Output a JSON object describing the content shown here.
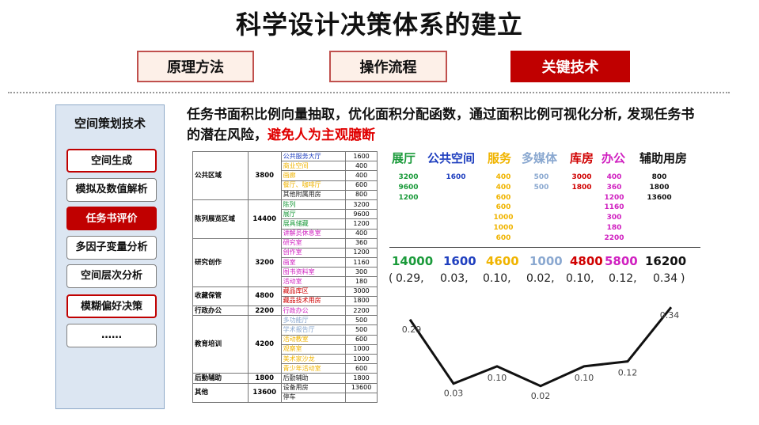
{
  "title": "科学设计决策体系的建立",
  "tabs": [
    {
      "label": "原理方法",
      "style": "outline"
    },
    {
      "label": "操作流程",
      "style": "outline"
    },
    {
      "label": "关键技术",
      "style": "solid"
    }
  ],
  "sidebar": {
    "title": "空间策划技术",
    "items": [
      {
        "label": "空间生成",
        "style": "red"
      },
      {
        "label": "模拟及数值解析",
        "style": "plain"
      },
      {
        "label": "任务书评价",
        "style": "solid"
      },
      {
        "label": "多因子变量分析",
        "style": "plain"
      },
      {
        "label": "空间层次分析",
        "style": "plain"
      },
      {
        "label": "模糊偏好决策",
        "style": "red"
      },
      {
        "label": "……",
        "style": "plain"
      }
    ]
  },
  "description": {
    "main": "任务书面积比例向量抽取，优化面积分配函数，通过面积比例可视化分析, 发现任务书的潜在风险，",
    "highlight": "避免人为主观臆断"
  },
  "area_table": {
    "groups": [
      {
        "name": "公共区域",
        "total": "3800",
        "rows": [
          {
            "item": "公共服务大厅",
            "value": "1600",
            "color": "#1f3fbf"
          },
          {
            "item": "商业空间",
            "value": "400",
            "color": "#f0b400"
          },
          {
            "item": "画廊",
            "value": "400",
            "color": "#f0b400"
          },
          {
            "item": "餐厅、咖啡厅",
            "value": "600",
            "color": "#f0b400"
          },
          {
            "item": "其他附属用房",
            "value": "800",
            "color": "#222222"
          }
        ]
      },
      {
        "name": "陈列展览区域",
        "total": "14400",
        "rows": [
          {
            "item": "陈列",
            "value": "3200",
            "color": "#1a9a3a"
          },
          {
            "item": "展厅",
            "value": "9600",
            "color": "#1a9a3a"
          },
          {
            "item": "展具储藏",
            "value": "1200",
            "color": "#1a9a3a"
          },
          {
            "item": "讲解员休息室",
            "value": "400",
            "color": "#d020c0"
          }
        ]
      },
      {
        "name": "研究创作",
        "total": "3200",
        "rows": [
          {
            "item": "研究室",
            "value": "360",
            "color": "#d020c0"
          },
          {
            "item": "创作室",
            "value": "1200",
            "color": "#d020c0"
          },
          {
            "item": "画室",
            "value": "1160",
            "color": "#d020c0"
          },
          {
            "item": "图书资料室",
            "value": "300",
            "color": "#d020c0"
          },
          {
            "item": "活动室",
            "value": "180",
            "color": "#d020c0"
          }
        ]
      },
      {
        "name": "收藏保管",
        "total": "4800",
        "rows": [
          {
            "item": "藏品库区",
            "value": "3000",
            "color": "#d00000"
          },
          {
            "item": "藏品技术用房",
            "value": "1800",
            "color": "#d00000"
          }
        ]
      },
      {
        "name": "行政办公",
        "total": "2200",
        "rows": [
          {
            "item": "行政办公",
            "value": "2200",
            "color": "#d020c0"
          }
        ]
      },
      {
        "name": "教育培训",
        "total": "4200",
        "rows": [
          {
            "item": "多功能厅",
            "value": "500",
            "color": "#8aa8d0"
          },
          {
            "item": "学术报告厅",
            "value": "500",
            "color": "#8aa8d0"
          },
          {
            "item": "活动教室",
            "value": "600",
            "color": "#f0b400"
          },
          {
            "item": "观察室",
            "value": "1000",
            "color": "#f0b400"
          },
          {
            "item": "美术家沙龙",
            "value": "1000",
            "color": "#f0b400"
          },
          {
            "item": "青少年活动室",
            "value": "600",
            "color": "#f0b400"
          }
        ]
      },
      {
        "name": "后勤辅助",
        "total": "1800",
        "rows": [
          {
            "item": "后勤辅助",
            "value": "1800",
            "color": "#222222"
          }
        ]
      },
      {
        "name": "其他",
        "total": "13600",
        "rows": [
          {
            "item": "设备用房",
            "value": "13600",
            "color": "#222222"
          },
          {
            "item": "停车",
            "value": "",
            "color": "#222222"
          }
        ]
      }
    ]
  },
  "categories": [
    {
      "name": "展厅",
      "color": "#1a9a3a",
      "values": [
        "3200",
        "9600",
        "1200"
      ],
      "total": "14000",
      "ratio": "0.29,"
    },
    {
      "name": "公共空间",
      "color": "#1f3fbf",
      "values": [
        "1600"
      ],
      "total": "1600",
      "ratio": "0.03,"
    },
    {
      "name": "服务",
      "color": "#f0b400",
      "values": [
        "400",
        "400",
        "600",
        "600",
        "1000",
        "1000",
        "600"
      ],
      "total": "4600",
      "ratio": "0.10,"
    },
    {
      "name": "多媒体",
      "color": "#8aa8d0",
      "values": [
        "500",
        "500"
      ],
      "total": "1000",
      "ratio": "0.02,"
    },
    {
      "name": "库房",
      "color": "#d00000",
      "values": [
        "3000",
        "1800"
      ],
      "total": "4800",
      "ratio": "0.10,"
    },
    {
      "name": "办公",
      "color": "#d020c0",
      "values": [
        "400",
        "360",
        "1200",
        "1160",
        "300",
        "180",
        "2200"
      ],
      "total": "5800",
      "ratio": "0.12,"
    },
    {
      "name": "辅助用房",
      "color": "#111111",
      "values": [
        "800",
        "1800",
        "13600"
      ],
      "total": "16200",
      "ratio": "0.34"
    }
  ],
  "ratio_parens": {
    "open": "(",
    "close": ")"
  },
  "chart_data": {
    "type": "line",
    "series": [
      {
        "values": [
          0.29,
          0.03,
          0.1,
          0.02,
          0.1,
          0.12,
          0.34
        ],
        "labels": [
          "0.29",
          "0.03",
          "0.10",
          "0.02",
          "0.10",
          "0.12",
          "0.34"
        ]
      }
    ],
    "ylim": [
      0,
      0.36
    ],
    "grid": false
  }
}
